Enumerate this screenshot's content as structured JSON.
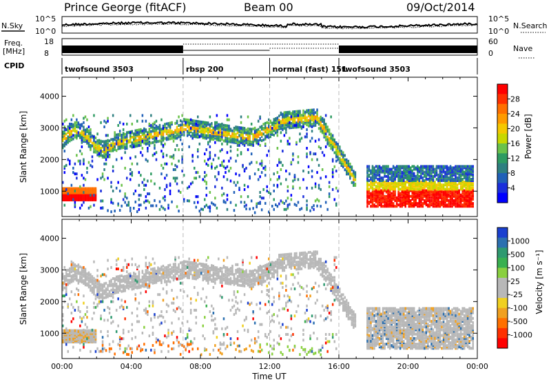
{
  "header": {
    "station": "Prince George (fitACF)",
    "beam": "Beam 00",
    "date": "09/Oct/2014"
  },
  "noise_panel": {
    "left_label": "N.Sky",
    "left_ticks": [
      "10^5",
      "10^0"
    ],
    "right_label": "N.Search",
    "right_ticks": [
      "10^5",
      "10^0"
    ]
  },
  "freq_panel": {
    "left_label_1": "Freq.",
    "left_label_2": "[MHz]",
    "left_ticks": [
      "18",
      "8"
    ],
    "right_label": "Nave",
    "right_ticks": [
      "60",
      "0"
    ]
  },
  "cpid_panel": {
    "label": "CPID",
    "modes": [
      {
        "name": "twofsound 3503",
        "start_hour": 0,
        "end_hour": 7
      },
      {
        "name": "rbsp 200",
        "start_hour": 7,
        "end_hour": 12
      },
      {
        "name": "normal (fast) 151",
        "start_hour": 12,
        "end_hour": 16
      },
      {
        "name": "twofsound 3503",
        "start_hour": 16,
        "end_hour": 24
      }
    ]
  },
  "power_colorbar": {
    "label": "Power [dB]",
    "ticks": [
      "28",
      "24",
      "20",
      "16",
      "12",
      "8",
      "4"
    ],
    "colors": [
      "#ff0000",
      "#ff3000",
      "#ff7000",
      "#ff9b00",
      "#f5c800",
      "#c8d700",
      "#6ac24a",
      "#2e9b62",
      "#2e7f80",
      "#2060b8",
      "#1b2fdc",
      "#0000ff"
    ]
  },
  "velocity_colorbar": {
    "label": "Velocity [m s⁻¹]",
    "ticks": [
      "1000",
      "500",
      "100",
      "25",
      "-25",
      "-100",
      "-500",
      "-1000"
    ],
    "colors": [
      "#1a40d0",
      "#2c70b0",
      "#2f9a70",
      "#39b050",
      "#8ad040",
      "#b8b8b8",
      "#b8b8b8",
      "#f0d020",
      "#f0a020",
      "#ff7000",
      "#ff3000",
      "#ff0000"
    ]
  },
  "chart_data": [
    {
      "type": "heatmap",
      "ylabel": "Slant Range [km]",
      "ylim": [
        200,
        4600
      ],
      "yticks": [
        "1000",
        "2000",
        "3000",
        "4000"
      ],
      "xlim": [
        0,
        24
      ],
      "quantity": "Power [dB]"
    },
    {
      "type": "heatmap",
      "ylabel": "Slant Range [km]",
      "xlabel": "Time UT",
      "ylim": [
        200,
        4600
      ],
      "yticks": [
        "1000",
        "2000",
        "3000",
        "4000"
      ],
      "xticks": [
        "00:00",
        "04:00",
        "08:00",
        "12:00",
        "16:00",
        "20:00",
        "00:00"
      ],
      "xlim": [
        0,
        24
      ],
      "quantity": "Velocity"
    }
  ]
}
